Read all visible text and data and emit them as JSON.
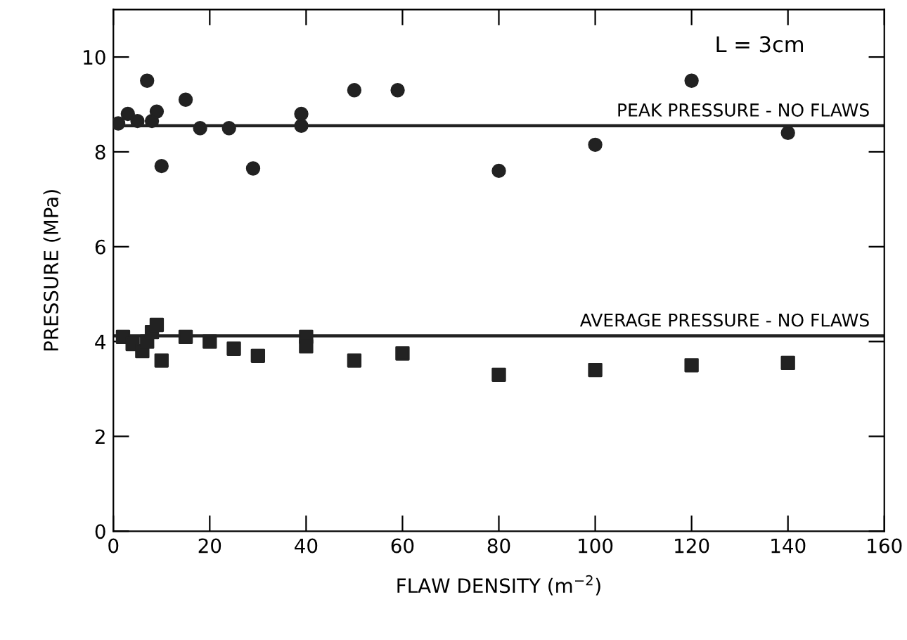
{
  "chart_data": {
    "type": "scatter",
    "xlabel": "FLAW DENSITY (m$^{−2}$)",
    "ylabel": "PRESSURE (MPa)",
    "xlim": [
      0,
      160
    ],
    "ylim": [
      0,
      11
    ],
    "xticks": [
      0,
      20,
      40,
      60,
      80,
      100,
      120,
      140,
      160
    ],
    "yticks": [
      0,
      2,
      4,
      6,
      8,
      10
    ],
    "grid": false,
    "legend": false,
    "annotations": [
      "L = 3cm"
    ],
    "ref_lines": [
      {
        "axis": "y",
        "value": 8.55,
        "label": "PEAK PRESSURE - NO FLAWS",
        "color": "#222222"
      },
      {
        "axis": "y",
        "value": 4.12,
        "label": "AVERAGE PRESSURE - NO FLAWS",
        "color": "#222222"
      }
    ],
    "series": [
      {
        "color": "#222222",
        "marker": "circle",
        "x": [
          1,
          3,
          5,
          7,
          8,
          9,
          10,
          15,
          18,
          24,
          29,
          39,
          39,
          50,
          59,
          80,
          100,
          120,
          140
        ],
        "values": [
          8.6,
          8.8,
          8.65,
          9.5,
          8.65,
          8.85,
          7.7,
          9.1,
          8.5,
          8.5,
          7.65,
          8.8,
          8.55,
          9.3,
          9.3,
          7.6,
          8.15,
          9.5,
          8.4
        ]
      },
      {
        "color": "#222222",
        "marker": "square",
        "x": [
          2,
          4,
          6,
          7,
          8,
          9,
          10,
          15,
          20,
          25,
          30,
          40,
          40,
          50,
          60,
          80,
          100,
          120,
          140
        ],
        "values": [
          4.1,
          3.95,
          3.8,
          4.0,
          4.2,
          4.35,
          3.6,
          4.1,
          4.0,
          3.85,
          3.7,
          4.1,
          3.9,
          3.6,
          3.75,
          3.3,
          3.4,
          3.5,
          3.55
        ]
      }
    ]
  }
}
